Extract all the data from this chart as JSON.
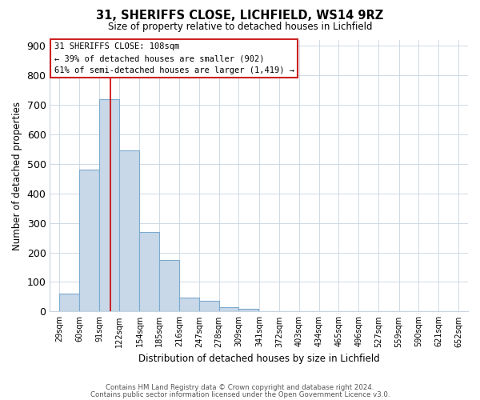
{
  "title": "31, SHERIFFS CLOSE, LICHFIELD, WS14 9RZ",
  "subtitle": "Size of property relative to detached houses in Lichfield",
  "xlabel": "Distribution of detached houses by size in Lichfield",
  "ylabel": "Number of detached properties",
  "bar_values": [
    60,
    480,
    720,
    545,
    270,
    175,
    48,
    35,
    15,
    8,
    0,
    0,
    0,
    0,
    0,
    0,
    0,
    0,
    0,
    0
  ],
  "bin_labels": [
    "29sqm",
    "60sqm",
    "91sqm",
    "122sqm",
    "154sqm",
    "185sqm",
    "216sqm",
    "247sqm",
    "278sqm",
    "309sqm",
    "341sqm",
    "372sqm",
    "403sqm",
    "434sqm",
    "465sqm",
    "496sqm",
    "527sqm",
    "559sqm",
    "590sqm",
    "621sqm",
    "652sqm"
  ],
  "bin_left_edges": [
    29,
    60,
    91,
    122,
    154,
    185,
    216,
    247,
    278,
    309,
    341,
    372,
    403,
    434,
    465,
    496,
    527,
    559,
    590,
    621
  ],
  "bin_width": 31,
  "bar_color": "#c8d8e8",
  "bar_edgecolor": "#7aaace",
  "vline_x": 108,
  "vline_color": "#cc0000",
  "ylim": [
    0,
    920
  ],
  "xlim_left": 14,
  "xlim_right": 667,
  "yticks": [
    0,
    100,
    200,
    300,
    400,
    500,
    600,
    700,
    800,
    900
  ],
  "xtick_positions": [
    29,
    60,
    91,
    122,
    154,
    185,
    216,
    247,
    278,
    309,
    341,
    372,
    403,
    434,
    465,
    496,
    527,
    559,
    590,
    621,
    652
  ],
  "annotation_title": "31 SHERIFFS CLOSE: 108sqm",
  "annotation_line1": "← 39% of detached houses are smaller (902)",
  "annotation_line2": "61% of semi-detached houses are larger (1,419) →",
  "footer1": "Contains HM Land Registry data © Crown copyright and database right 2024.",
  "footer2": "Contains public sector information licensed under the Open Government Licence v3.0."
}
